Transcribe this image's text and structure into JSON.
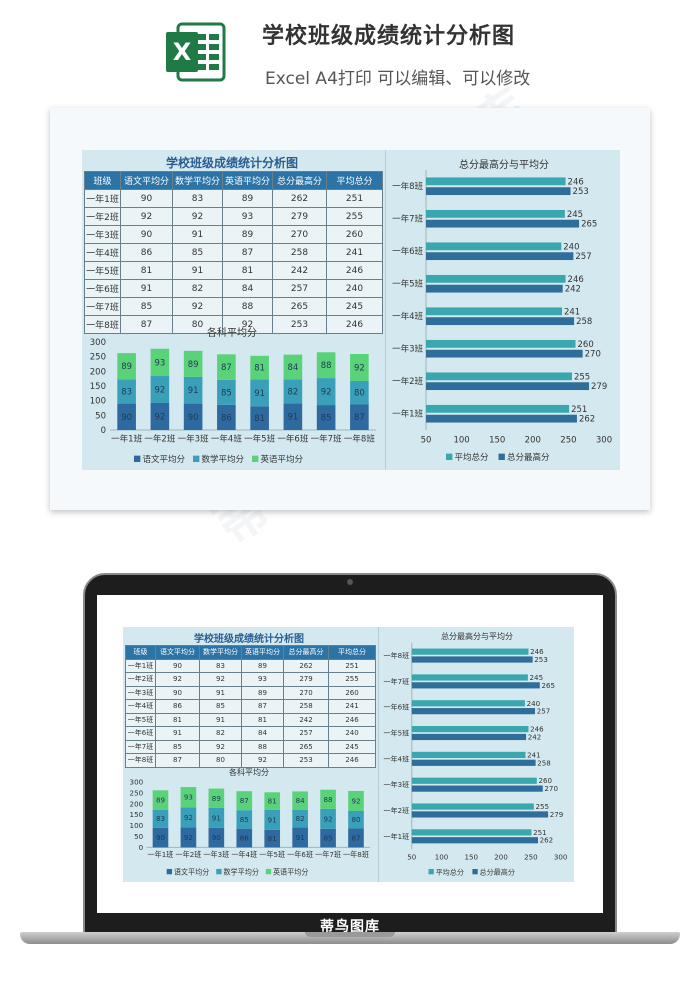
{
  "header": {
    "title": "学校班级成绩统计分析图",
    "subtitle": "Excel A4打印 可以编辑、可以修改",
    "icon": "excel-icon",
    "icon_letter": "X"
  },
  "sheet": {
    "table_title": "学校班级成绩统计分析图",
    "columns": [
      "班级",
      "语文平均分",
      "数学平均分",
      "英语平均分",
      "总分最高分",
      "平均总分"
    ],
    "rows": [
      [
        "一年1班",
        "90",
        "83",
        "89",
        "262",
        "251"
      ],
      [
        "一年2班",
        "92",
        "92",
        "93",
        "279",
        "255"
      ],
      [
        "一年3班",
        "90",
        "91",
        "89",
        "270",
        "260"
      ],
      [
        "一年4班",
        "86",
        "85",
        "87",
        "258",
        "241"
      ],
      [
        "一年5班",
        "81",
        "91",
        "81",
        "242",
        "246"
      ],
      [
        "一年6班",
        "91",
        "82",
        "84",
        "257",
        "240"
      ],
      [
        "一年7班",
        "85",
        "92",
        "88",
        "265",
        "245"
      ],
      [
        "一年8班",
        "87",
        "80",
        "92",
        "253",
        "246"
      ]
    ]
  },
  "chart_data": [
    {
      "type": "bar",
      "stacked": true,
      "title": "各科平均分",
      "categories": [
        "一年1班",
        "一年2班",
        "一年3班",
        "一年4班",
        "一年5班",
        "一年6班",
        "一年7班",
        "一年8班"
      ],
      "series": [
        {
          "name": "语文平均分",
          "color": "#2e6aa0",
          "values": [
            90,
            92,
            90,
            86,
            81,
            91,
            85,
            87
          ]
        },
        {
          "name": "数学平均分",
          "color": "#3aa0b9",
          "values": [
            83,
            92,
            91,
            85,
            91,
            82,
            92,
            80
          ]
        },
        {
          "name": "英语平均分",
          "color": "#5ad27a",
          "values": [
            89,
            93,
            89,
            87,
            81,
            84,
            88,
            92
          ]
        }
      ],
      "ylim": [
        0,
        300
      ],
      "yticks": [
        0,
        50,
        100,
        150,
        200,
        250,
        300
      ],
      "legend": "bottom"
    },
    {
      "type": "bar",
      "orientation": "horizontal",
      "title": "总分最高分与平均分",
      "categories": [
        "一年1班",
        "一年2班",
        "一年3班",
        "一年4班",
        "一年5班",
        "一年6班",
        "一年7班",
        "一年8班"
      ],
      "series": [
        {
          "name": "平均总分",
          "color": "#3aa6ad",
          "values": [
            251,
            255,
            260,
            241,
            246,
            240,
            245,
            246
          ]
        },
        {
          "name": "总分最高分",
          "color": "#2f6e9a",
          "values": [
            262,
            279,
            270,
            258,
            242,
            257,
            265,
            253
          ]
        }
      ],
      "xlim": [
        50,
        300
      ],
      "xticks": [
        50,
        100,
        150,
        200,
        250,
        300
      ],
      "legend": "bottom"
    }
  ],
  "laptop": {
    "brand": "蒂鸟图库"
  },
  "watermark": {
    "text": "蒂鸟图库"
  }
}
